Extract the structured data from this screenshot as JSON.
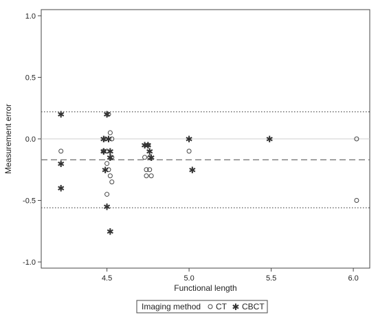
{
  "chart_data": {
    "type": "scatter",
    "xlabel": "Functional length",
    "ylabel": "Measurement error",
    "xlim": [
      4.1,
      6.1
    ],
    "ylim": [
      -1.05,
      1.05
    ],
    "x_ticks": [
      4.5,
      5.0,
      5.5,
      6.0
    ],
    "x_tick_labels": [
      "4.5",
      "5.0",
      "5.5",
      "6.0"
    ],
    "y_ticks": [
      1.0,
      0.5,
      0.0,
      -0.5,
      -1.0
    ],
    "y_tick_labels": [
      "1.0",
      "0.5",
      "0.0",
      "-0.5",
      "-1.0"
    ],
    "reference_lines": [
      {
        "y": 0.22,
        "style": "dotted"
      },
      {
        "y": 0.0,
        "style": "solid-light"
      },
      {
        "y": -0.17,
        "style": "dashed"
      },
      {
        "y": -0.56,
        "style": "dotted"
      }
    ],
    "legend": {
      "title": "Imaging method",
      "placement": "bottom",
      "entries": [
        {
          "name": "CT",
          "symbol": "circle"
        },
        {
          "name": "CBCT",
          "symbol": "star"
        }
      ]
    },
    "series": [
      {
        "name": "CT",
        "symbol": "circle",
        "points": [
          [
            4.22,
            -0.1
          ],
          [
            4.48,
            -0.1
          ],
          [
            4.49,
            0.0
          ],
          [
            4.5,
            -0.1
          ],
          [
            4.5,
            -0.2
          ],
          [
            4.5,
            -0.45
          ],
          [
            4.51,
            -0.25
          ],
          [
            4.51,
            0.2
          ],
          [
            4.52,
            0.05
          ],
          [
            4.52,
            -0.3
          ],
          [
            4.53,
            -0.35
          ],
          [
            4.53,
            0.0
          ],
          [
            4.53,
            -0.15
          ],
          [
            4.73,
            -0.15
          ],
          [
            4.74,
            -0.25
          ],
          [
            4.74,
            -0.3
          ],
          [
            4.75,
            -0.05
          ],
          [
            4.76,
            -0.25
          ],
          [
            4.77,
            -0.3
          ],
          [
            4.76,
            -0.15
          ],
          [
            5.0,
            -0.1
          ],
          [
            6.02,
            0.0
          ],
          [
            6.02,
            -0.5
          ]
        ]
      },
      {
        "name": "CBCT",
        "symbol": "star",
        "points": [
          [
            4.22,
            0.2
          ],
          [
            4.22,
            -0.2
          ],
          [
            4.22,
            -0.4
          ],
          [
            4.48,
            0.0
          ],
          [
            4.48,
            -0.1
          ],
          [
            4.49,
            -0.25
          ],
          [
            4.5,
            -0.55
          ],
          [
            4.5,
            0.2
          ],
          [
            4.51,
            0.0
          ],
          [
            4.52,
            -0.15
          ],
          [
            4.52,
            -0.1
          ],
          [
            4.52,
            -0.75
          ],
          [
            4.73,
            -0.05
          ],
          [
            4.75,
            -0.05
          ],
          [
            4.76,
            -0.1
          ],
          [
            4.77,
            -0.15
          ],
          [
            5.0,
            0.0
          ],
          [
            5.02,
            -0.25
          ],
          [
            5.49,
            0.0
          ]
        ]
      }
    ]
  }
}
